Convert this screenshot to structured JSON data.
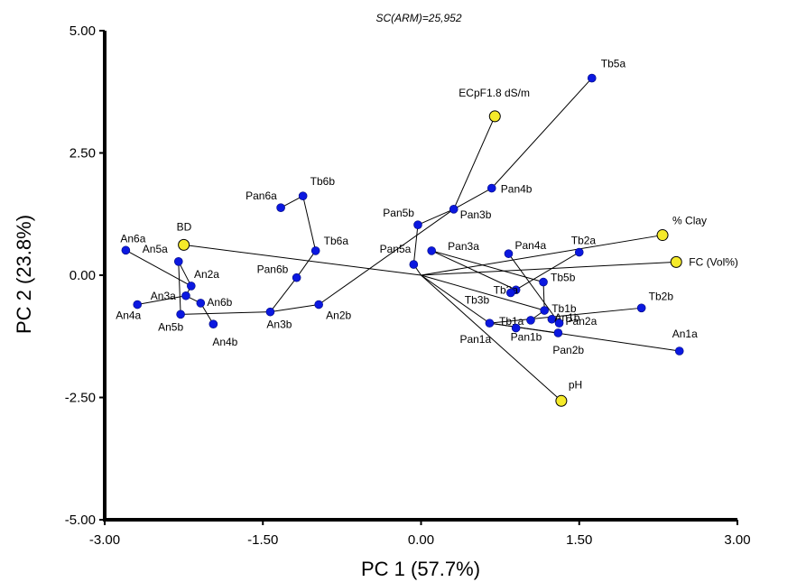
{
  "chart_data": {
    "type": "scatter",
    "title": "SC(ARM)=25,952",
    "xlabel": "PC 1 (57.7%)",
    "ylabel": "PC 2 (23.8%)",
    "xlim": [
      -3.0,
      3.0
    ],
    "ylim": [
      -5.0,
      5.0
    ],
    "x_ticks": [
      "-3.00",
      "-1.50",
      "0.00",
      "1.50",
      "3.00"
    ],
    "y_ticks": [
      "5.00",
      "2.50",
      "0.00",
      "-2.50",
      "-5.00"
    ],
    "grid": false,
    "colors": {
      "samples": "#0b18e0",
      "variables": "#f5ea2a",
      "lines": "#000000"
    },
    "samples": [
      {
        "name": "Tb5a",
        "x": 1.62,
        "y": 4.03
      },
      {
        "name": "Pan4b",
        "x": 0.67,
        "y": 1.78
      },
      {
        "name": "Pan3b",
        "x": 0.31,
        "y": 1.35
      },
      {
        "name": "Pan5b",
        "x": -0.03,
        "y": 1.03
      },
      {
        "name": "Pan5a",
        "x": -0.07,
        "y": 0.22
      },
      {
        "name": "Pan3a",
        "x": 0.1,
        "y": 0.5
      },
      {
        "name": "Pan4a",
        "x": 0.83,
        "y": 0.44
      },
      {
        "name": "Tb2a",
        "x": 1.5,
        "y": 0.47
      },
      {
        "name": "Tb3a",
        "x": 0.9,
        "y": -0.3
      },
      {
        "name": "Tb5b",
        "x": 1.16,
        "y": -0.14
      },
      {
        "name": "Tb3b",
        "x": 0.85,
        "y": -0.36
      },
      {
        "name": "Tb1b",
        "x": 1.17,
        "y": -0.72
      },
      {
        "name": "Tb1a",
        "x": 1.04,
        "y": -0.92
      },
      {
        "name": "An1b",
        "x": 1.24,
        "y": -0.9
      },
      {
        "name": "Pan2a",
        "x": 1.31,
        "y": -0.98
      },
      {
        "name": "Pan2b",
        "x": 1.3,
        "y": -1.18
      },
      {
        "name": "Pan1a",
        "x": 0.65,
        "y": -0.98
      },
      {
        "name": "Pan1b",
        "x": 0.9,
        "y": -1.08
      },
      {
        "name": "Tb2b",
        "x": 2.09,
        "y": -0.67
      },
      {
        "name": "An1a",
        "x": 2.45,
        "y": -1.55
      },
      {
        "name": "Tb6b",
        "x": -1.12,
        "y": 1.62
      },
      {
        "name": "Pan6a",
        "x": -1.33,
        "y": 1.38
      },
      {
        "name": "Tb6a",
        "x": -1.0,
        "y": 0.5
      },
      {
        "name": "Pan6b",
        "x": -1.18,
        "y": -0.05
      },
      {
        "name": "An2b",
        "x": -0.97,
        "y": -0.6
      },
      {
        "name": "An3b",
        "x": -1.43,
        "y": -0.75
      },
      {
        "name": "An6a",
        "x": -2.8,
        "y": 0.51
      },
      {
        "name": "An5a",
        "x": -2.3,
        "y": 0.28
      },
      {
        "name": "An3a",
        "x": -2.18,
        "y": -0.22
      },
      {
        "name": "An2a",
        "x": -2.23,
        "y": -0.42
      },
      {
        "name": "An4a",
        "x": -2.69,
        "y": -0.6
      },
      {
        "name": "An6b",
        "x": -2.09,
        "y": -0.57
      },
      {
        "name": "An5b",
        "x": -2.28,
        "y": -0.8
      },
      {
        "name": "An4b",
        "x": -1.97,
        "y": -1.0
      }
    ],
    "variables": [
      {
        "name": "ECpF1.8 dS/m",
        "x": 0.7,
        "y": 3.25
      },
      {
        "name": "BD",
        "x": -2.25,
        "y": 0.62
      },
      {
        "name": "% Clay",
        "x": 2.29,
        "y": 0.82
      },
      {
        "name": "FC (Vol%)",
        "x": 2.42,
        "y": 0.27
      },
      {
        "name": "pH",
        "x": 1.33,
        "y": -2.57
      }
    ],
    "links": [
      [
        "Tb5a",
        "Pan4b"
      ],
      [
        "Pan4b",
        "Pan3b"
      ],
      [
        "Pan3b",
        "Pan5b"
      ],
      [
        "Pan5b",
        "Pan5a"
      ],
      [
        "Pan3b",
        "An2b"
      ],
      [
        "Pan3b",
        "ECpF1.8 dS/m"
      ],
      [
        "Pan3a",
        "Tb5b"
      ],
      [
        "Pan3a",
        "Tb3a"
      ],
      [
        "Pan4a",
        "Pan2a"
      ],
      [
        "Tb2a",
        "Tb3b"
      ],
      [
        "Tb5b",
        "Tb1b"
      ],
      [
        "Tb1b",
        "Tb1a"
      ],
      [
        "An1b",
        "Pan2a"
      ],
      [
        "Pan1a",
        "Pan2b"
      ],
      [
        "Pan1a",
        "An1a"
      ],
      [
        "Pan1a",
        "Tb2b"
      ],
      [
        "Tb6b",
        "Pan6a"
      ],
      [
        "Tb6b",
        "Tb6a"
      ],
      [
        "Tb6a",
        "Pan6b"
      ],
      [
        "Pan6b",
        "An3b"
      ],
      [
        "An2b",
        "An3b"
      ],
      [
        "An3b",
        "An5b"
      ],
      [
        "An6a",
        "An3a"
      ],
      [
        "An5a",
        "An3a"
      ],
      [
        "An3a",
        "An2a"
      ],
      [
        "An2a",
        "An4a"
      ],
      [
        "An2a",
        "An6b"
      ],
      [
        "An6b",
        "An4b"
      ],
      [
        "An5a",
        "An5b"
      ]
    ],
    "origin_links": [
      "Pan5a",
      "BD",
      "% Clay",
      "FC (Vol%)",
      "pH",
      "Pan1a",
      "Tb1b"
    ]
  }
}
